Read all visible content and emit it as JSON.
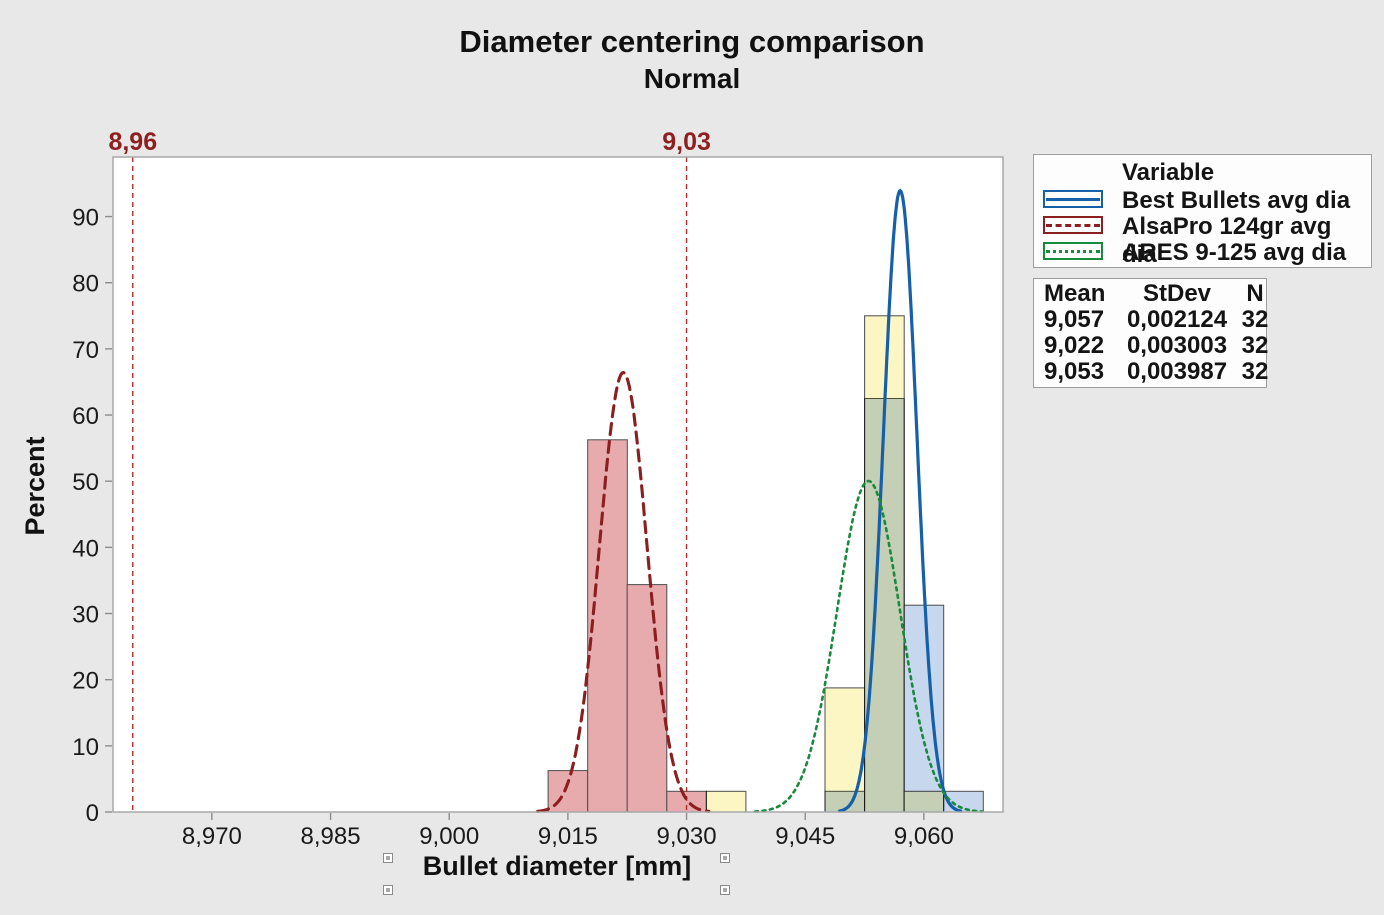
{
  "title": "Diameter centering comparison",
  "subtitle": "Normal",
  "y_axis": {
    "label": "Percent",
    "ticks": [
      0,
      10,
      20,
      30,
      40,
      50,
      60,
      70,
      80,
      90
    ]
  },
  "x_axis": {
    "label": "Bullet diameter [mm]",
    "tick_labels": [
      "8,970",
      "8,985",
      "9,000",
      "9,015",
      "9,030",
      "9,045",
      "9,060"
    ],
    "tick_values": [
      8.97,
      8.985,
      9.0,
      9.015,
      9.03,
      9.045,
      9.06
    ]
  },
  "ref_lines": [
    {
      "value": 8.96,
      "label": "8,96"
    },
    {
      "value": 9.03,
      "label": "9,03"
    }
  ],
  "ref_line_color": "#b02b2b",
  "ref_label_color": "#8e1f1f",
  "legend": {
    "header": "Variable",
    "items": [
      {
        "label": "Best Bullets avg dia",
        "color": "#1560a8",
        "line_style": "solid"
      },
      {
        "label": "AlsaPro 124gr avg dia",
        "color": "#8b1e1e",
        "line_style": "dashed"
      },
      {
        "label": "ARES 9-125 avg dia",
        "color": "#178a3b",
        "line_style": "dotted"
      }
    ]
  },
  "stats_table": {
    "headers": [
      "Mean",
      "StDev",
      "N"
    ],
    "rows": [
      [
        "9,057",
        "0,002124",
        "32"
      ],
      [
        "9,022",
        "0,003003",
        "32"
      ],
      [
        "9,053",
        "0,003987",
        "32"
      ]
    ]
  },
  "chart_data": {
    "type": "bar",
    "subtype": "histogram-with-normal-fit",
    "title": "Diameter centering comparison",
    "distribution": "Normal",
    "xlabel": "Bullet diameter [mm]",
    "ylabel": "Percent",
    "xlim": [
      8.9575,
      9.07
    ],
    "ylim": [
      0,
      99
    ],
    "bin_width": 0.005,
    "grid": false,
    "legend_position": "right",
    "series": [
      {
        "name": "Best Bullets avg dia",
        "mean": 9.057,
        "stdev": 0.002124,
        "n": 32,
        "curve_color": "#1560a8",
        "curve_dash": "",
        "curve_width": 3.2,
        "fill": "#c7d7ed",
        "bars": [
          {
            "center": 9.05,
            "percent": 3.125
          },
          {
            "center": 9.055,
            "percent": 62.5
          },
          {
            "center": 9.06,
            "percent": 31.25
          },
          {
            "center": 9.065,
            "percent": 3.125
          }
        ]
      },
      {
        "name": "AlsaPro 124gr avg dia",
        "mean": 9.022,
        "stdev": 0.003003,
        "n": 32,
        "curve_color": "#8b1e1e",
        "curve_dash": "11 7",
        "curve_width": 3.1,
        "fill": "#e7abad",
        "bars": [
          {
            "center": 9.015,
            "percent": 6.25
          },
          {
            "center": 9.02,
            "percent": 56.25
          },
          {
            "center": 9.025,
            "percent": 34.375
          },
          {
            "center": 9.03,
            "percent": 3.125
          }
        ]
      },
      {
        "name": "ARES 9-125 avg dia",
        "mean": 9.053,
        "stdev": 0.003987,
        "n": 32,
        "curve_color": "#178a3b",
        "curve_dash": "3 4.5",
        "curve_width": 2.6,
        "fill": "#fbf6c4",
        "bars": [
          {
            "center": 9.035,
            "percent": 3.125
          },
          {
            "center": 9.05,
            "percent": 18.75
          },
          {
            "center": 9.055,
            "percent": 75.0
          },
          {
            "center": 9.06,
            "percent": 3.125
          }
        ]
      }
    ],
    "reference_lines": [
      8.96,
      9.03
    ]
  }
}
